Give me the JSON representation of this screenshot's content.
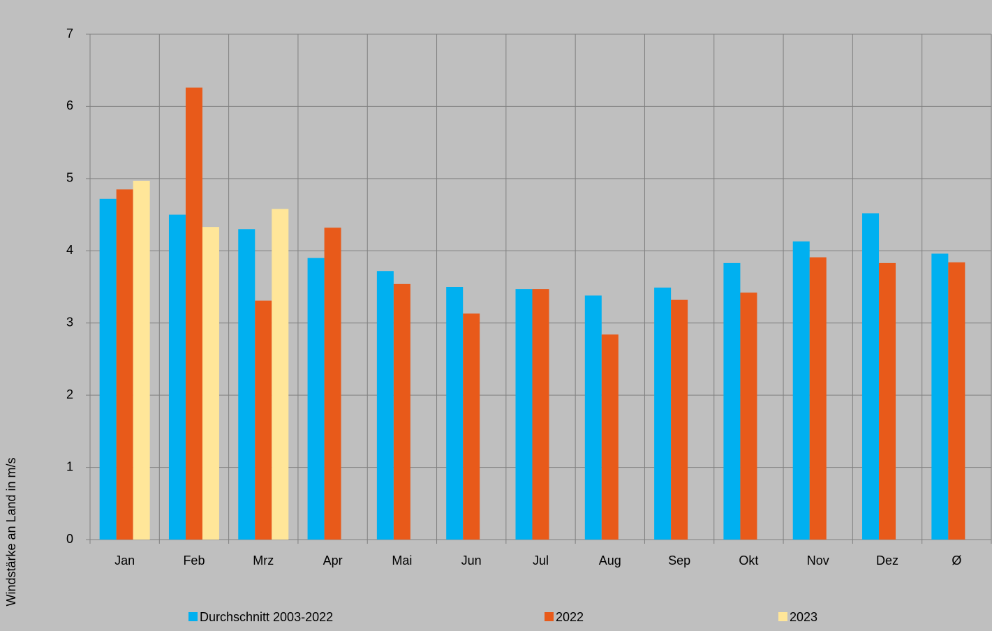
{
  "chart_data": {
    "type": "bar",
    "y_label": "Windstärke an Land in m/s",
    "categories": [
      "Jan",
      "Feb",
      "Mrz",
      "Apr",
      "Mai",
      "Jun",
      "Jul",
      "Aug",
      "Sep",
      "Okt",
      "Nov",
      "Dez",
      "Ø"
    ],
    "series": [
      {
        "name": "Durchschnitt 2003-2022",
        "color": "#00b0f0",
        "values": [
          4.72,
          4.5,
          4.3,
          3.9,
          3.72,
          3.5,
          3.47,
          3.38,
          3.49,
          3.83,
          4.13,
          4.52,
          3.96
        ]
      },
      {
        "name": "2022",
        "color": "#e85a1a",
        "values": [
          4.85,
          6.26,
          3.31,
          4.32,
          3.54,
          3.13,
          3.47,
          2.84,
          3.32,
          3.42,
          3.91,
          3.83,
          3.84
        ]
      },
      {
        "name": "2023",
        "color": "#ffe699",
        "values": [
          4.97,
          4.33,
          4.58,
          null,
          null,
          null,
          null,
          null,
          null,
          null,
          null,
          null,
          null
        ]
      }
    ],
    "ylim": [
      0,
      7
    ],
    "yticks": [
      0,
      1,
      2,
      3,
      4,
      5,
      6,
      7
    ],
    "grid": true,
    "legend": "bottom"
  }
}
